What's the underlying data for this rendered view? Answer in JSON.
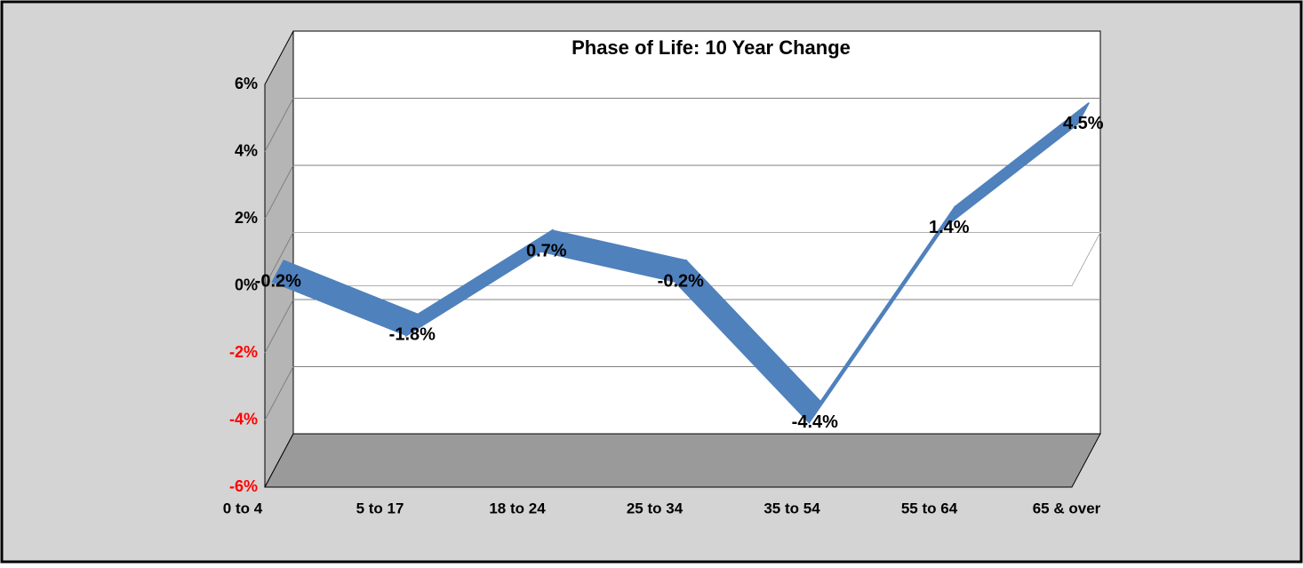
{
  "chart_data": {
    "type": "line3d",
    "title": "Phase of Life: 10 Year Change",
    "categories": [
      "0 to 4",
      "5 to 17",
      "18 to 24",
      "25 to 34",
      "35 to 54",
      "55 to 64",
      "65 & over"
    ],
    "values": [
      -0.2,
      -1.8,
      0.7,
      -0.2,
      -4.4,
      1.4,
      4.5
    ],
    "value_labels": [
      "-0.2%",
      "-1.8%",
      "0.7%",
      "-0.2%",
      "-4.4%",
      "1.4%",
      "4.5%"
    ],
    "color": "#4f81bd",
    "ylim": [
      -6,
      6
    ],
    "yticks": [
      {
        "value": -6,
        "label": "-6%"
      },
      {
        "value": -4,
        "label": "-4%"
      },
      {
        "value": -2,
        "label": "-2%"
      },
      {
        "value": 0,
        "label": "0%"
      },
      {
        "value": 2,
        "label": "2%"
      },
      {
        "value": 4,
        "label": "4%"
      },
      {
        "value": 6,
        "label": "6%"
      }
    ],
    "negative_tick_color": "#ff0000",
    "grid": true
  }
}
